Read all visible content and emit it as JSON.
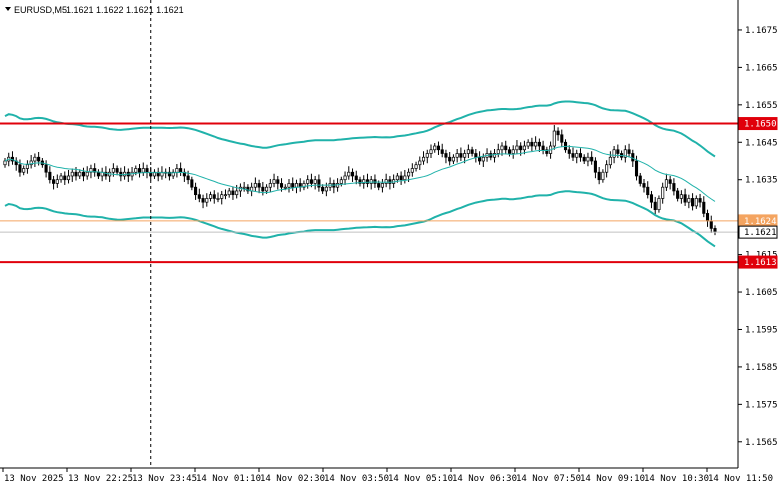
{
  "header": {
    "symbol": "EURUSD,M5",
    "ohlc": "1.1621 1.1622 1.1621 1.1621"
  },
  "colors": {
    "band": "#20b2aa",
    "level": "#e0000b",
    "bid_line": "#c0c0c0",
    "ask_line": "#f4a460",
    "candle": "#000000",
    "background": "#ffffff"
  },
  "chart_data": {
    "type": "candlestick",
    "symbol": "EURUSD",
    "timeframe": "M5",
    "title": "EURUSD,M5",
    "ylim": [
      1.1558,
      1.1683
    ],
    "y_ticks": [
      "1.1675",
      "1.1665",
      "1.1655",
      "1.1645",
      "1.1635",
      "1.1615",
      "1.1605",
      "1.1595",
      "1.1585",
      "1.1575",
      "1.1565"
    ],
    "x_ticks": [
      "13 Nov 2025",
      "13 Nov 22:25",
      "13 Nov 23:45",
      "14 Nov 01:10",
      "14 Nov 02:30",
      "14 Nov 03:50",
      "14 Nov 05:10",
      "14 Nov 06:30",
      "14 Nov 07:50",
      "14 Nov 09:10",
      "14 Nov 10:30",
      "14 Nov 11:50"
    ],
    "levels": [
      {
        "label": "1.1650",
        "value": 1.165,
        "color": "#e0000b"
      },
      {
        "label": "1.1613",
        "value": 1.1613,
        "color": "#e0000b"
      }
    ],
    "price_markers": [
      {
        "label": "1.1624",
        "value": 1.1624,
        "color": "#f4a460"
      },
      {
        "label": "1.1621",
        "value": 1.1621,
        "color": "#ffffff"
      }
    ],
    "crosshair_index": 39,
    "closes": [
      1.164,
      1.1641,
      1.164,
      1.1639,
      1.1637,
      1.1638,
      1.1639,
      1.164,
      1.1641,
      1.164,
      1.1639,
      1.1637,
      1.1635,
      1.1634,
      1.1635,
      1.1636,
      1.1635,
      1.1636,
      1.1637,
      1.1636,
      1.1637,
      1.1636,
      1.1637,
      1.1638,
      1.1637,
      1.1636,
      1.1637,
      1.1636,
      1.1637,
      1.1638,
      1.1637,
      1.1636,
      1.1637,
      1.1636,
      1.1637,
      1.1638,
      1.1637,
      1.1638,
      1.1637,
      1.1636,
      1.1637,
      1.1636,
      1.1637,
      1.1637,
      1.1636,
      1.1637,
      1.1638,
      1.1637,
      1.1636,
      1.1635,
      1.1633,
      1.1631,
      1.163,
      1.1629,
      1.163,
      1.1631,
      1.163,
      1.163,
      1.1631,
      1.1631,
      1.1632,
      1.1631,
      1.1632,
      1.1633,
      1.1633,
      1.1632,
      1.1633,
      1.1634,
      1.1633,
      1.1632,
      1.1633,
      1.1634,
      1.1635,
      1.1634,
      1.1633,
      1.1633,
      1.1634,
      1.1633,
      1.1634,
      1.1633,
      1.1634,
      1.1635,
      1.1634,
      1.1635,
      1.1633,
      1.1632,
      1.1633,
      1.1634,
      1.1633,
      1.1634,
      1.1635,
      1.1636,
      1.1637,
      1.1636,
      1.1635,
      1.1634,
      1.1635,
      1.1634,
      1.1635,
      1.1634,
      1.1633,
      1.1634,
      1.1635,
      1.1634,
      1.1635,
      1.1636,
      1.1635,
      1.1636,
      1.1637,
      1.1638,
      1.1639,
      1.164,
      1.1641,
      1.1642,
      1.1643,
      1.1644,
      1.1643,
      1.1642,
      1.1641,
      1.164,
      1.1641,
      1.1642,
      1.1641,
      1.1642,
      1.1643,
      1.1642,
      1.1641,
      1.164,
      1.1641,
      1.1642,
      1.1641,
      1.1642,
      1.1643,
      1.1644,
      1.1643,
      1.1642,
      1.1643,
      1.1644,
      1.1643,
      1.1644,
      1.1645,
      1.1644,
      1.1645,
      1.1644,
      1.1643,
      1.1642,
      1.1644,
      1.1648,
      1.1647,
      1.1645,
      1.1643,
      1.1642,
      1.1641,
      1.1642,
      1.1641,
      1.164,
      1.1641,
      1.164,
      1.1637,
      1.1635,
      1.1637,
      1.1639,
      1.1641,
      1.1643,
      1.1642,
      1.1641,
      1.1643,
      1.1642,
      1.164,
      1.1636,
      1.1634,
      1.1633,
      1.1631,
      1.1629,
      1.1627,
      1.163,
      1.1633,
      1.1635,
      1.1634,
      1.1632,
      1.163,
      1.1631,
      1.1629,
      1.163,
      1.1628,
      1.163,
      1.1629,
      1.1626,
      1.1624,
      1.1622,
      1.1621
    ]
  }
}
